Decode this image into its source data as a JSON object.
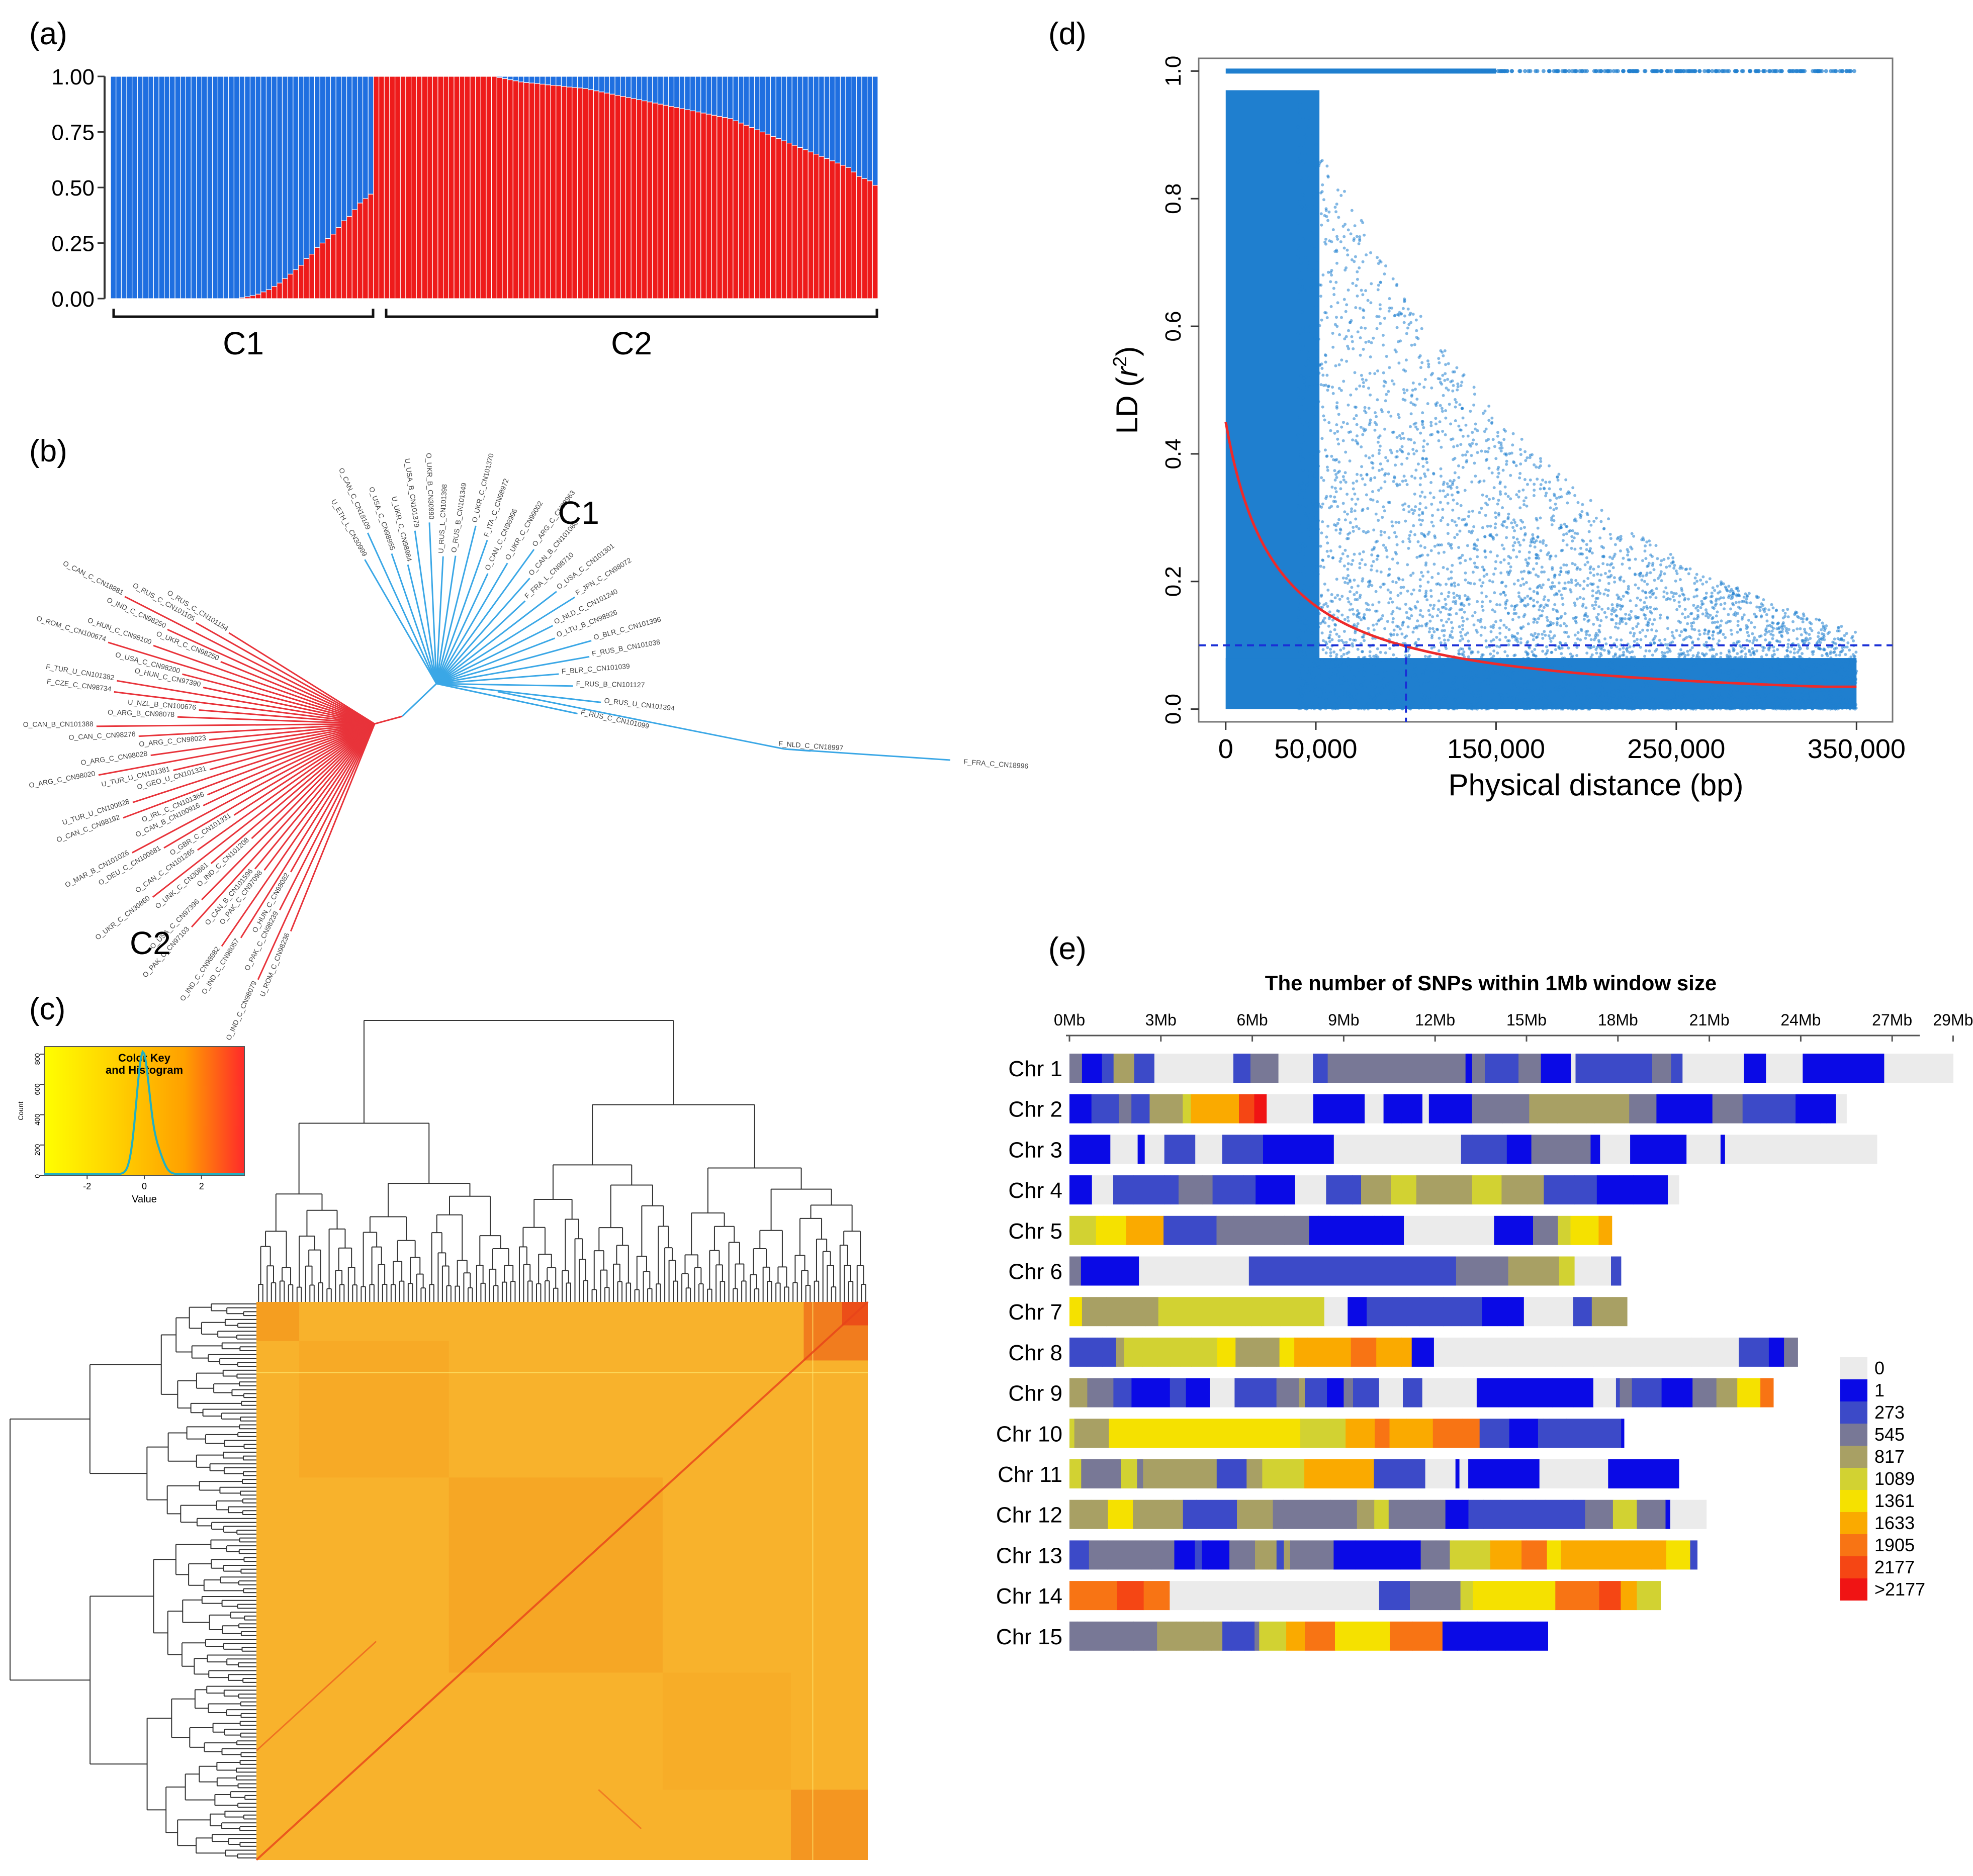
{
  "figure": {
    "panels": [
      "(a)",
      "(b)",
      "(c)",
      "(d)",
      "(e)"
    ],
    "colors": {
      "blue": "#1f6fe0",
      "red": "#ee1b1b",
      "ld_points": "#1f7fcf",
      "fit_curve": "#ee2a2a",
      "threshold": "#1a2fd6",
      "tree_blue": "#3aa7e6",
      "tree_red": "#e8333a"
    }
  },
  "chart_data": [
    {
      "id": "a",
      "type": "bar",
      "stacked": true,
      "title": "",
      "ylim": [
        0,
        1
      ],
      "y_ticks": [
        "0.00",
        "0.25",
        "0.50",
        "0.75",
        "1.00"
      ],
      "series": [
        {
          "name": "red",
          "color": "#ee1b1b",
          "description": "proportion of ancestry (red), sorted within groups"
        },
        {
          "name": "blue",
          "color": "#1f6fe0",
          "description": "1 - red"
        }
      ],
      "groups": [
        {
          "label": "C1",
          "n": 49,
          "values": [
            0,
            0,
            0,
            0,
            0,
            0,
            0,
            0,
            0,
            0,
            0,
            0,
            0,
            0,
            0,
            0,
            0,
            0,
            0,
            0,
            0,
            0,
            0,
            0,
            0.004,
            0.008,
            0.013,
            0.02,
            0.03,
            0.04,
            0.055,
            0.07,
            0.09,
            0.11,
            0.13,
            0.15,
            0.18,
            0.2,
            0.23,
            0.25,
            0.27,
            0.29,
            0.32,
            0.35,
            0.37,
            0.4,
            0.43,
            0.45,
            0.47
          ]
        },
        {
          "label": "C2",
          "n": 94,
          "values": [
            1,
            1,
            1,
            1,
            1,
            1,
            1,
            1,
            1,
            1,
            1,
            1,
            1,
            1,
            1,
            1,
            1,
            1,
            1,
            1,
            1,
            1,
            1,
            0.995,
            0.99,
            0.985,
            0.98,
            0.975,
            0.972,
            0.97,
            0.968,
            0.965,
            0.962,
            0.96,
            0.958,
            0.955,
            0.952,
            0.95,
            0.948,
            0.945,
            0.94,
            0.935,
            0.93,
            0.925,
            0.92,
            0.915,
            0.91,
            0.905,
            0.9,
            0.895,
            0.89,
            0.885,
            0.88,
            0.875,
            0.87,
            0.865,
            0.86,
            0.855,
            0.85,
            0.845,
            0.84,
            0.835,
            0.83,
            0.825,
            0.82,
            0.815,
            0.81,
            0.8,
            0.79,
            0.78,
            0.77,
            0.76,
            0.75,
            0.74,
            0.73,
            0.72,
            0.71,
            0.7,
            0.69,
            0.68,
            0.67,
            0.66,
            0.65,
            0.64,
            0.63,
            0.62,
            0.61,
            0.6,
            0.59,
            0.57,
            0.55,
            0.54,
            0.53,
            0.51
          ]
        }
      ]
    },
    {
      "id": "b",
      "type": "tree",
      "title": "",
      "clusters": [
        {
          "label": "C1",
          "color": "#3aa7e6"
        },
        {
          "label": "C2",
          "color": "#e8333a"
        }
      ],
      "leaf_labels_blue": [
        "U_ETH_L_CN30999",
        "O_CAN_C_CN18109",
        "O_USA_C_CN98955",
        "U_UKR_C_CN98984",
        "U_USA_B_CN101379",
        "O_UKR_B_CN30990",
        "U_RUS_L_CN101398",
        "O_RUS_B_CN101349",
        "O_UKR_C_CN101370",
        "F_ITA_C_CN98972",
        "O_CAN_C_CN98996",
        "O_UKR_C_CN99002",
        "O_ARG_C_CN98963",
        "O_CAN_B_CN101080",
        "F_FRA_L_CN98710",
        "O_USA_C_CN101301",
        "F_JPN_C_CN98072",
        "O_NLD_C_CN101240",
        "O_LTU_B_CN98926",
        "O_BLR_C_CN101396",
        "F_RUS_B_CN101038",
        "F_BLR_C_CN101039",
        "F_RUS_B_CN101127",
        "O_RUS_U_CN101394",
        "F_RUS_C_CN101099"
      ],
      "leaf_labels_blue_far": [
        "F_NLD_C_CN18997",
        "F_FRA_C_CN18996"
      ],
      "leaf_labels_red": [
        "U_ROM_C_CN98236",
        "O_IND_C_CN98079",
        "O_PAK_C_CN98239",
        "O_HUN_C_CN98082",
        "O_IND_C_CN98057",
        "O_IND_C_CN98982",
        "O_PAK_C_CN97098",
        "O_CAN_B_CN101596",
        "O_PAK_C_CN97103",
        "O_USA_C_CN97396",
        "O_IND_C_CN101208",
        "O_UNK_C_CN30861",
        "O_UKR_C_CN30860",
        "O_CAN_C_CN101265",
        "O_GBR_C_CN101331",
        "O_DEU_C_CN100681",
        "O_MAR_B_CN101026",
        "O_CAN_B_CN100916",
        "O_IRL_C_CN101366",
        "O_CAN_C_CN98192",
        "U_TUR_U_CN100828",
        "O_GEO_U_CN101331",
        "U_TUR_U_CN101381",
        "O_ARG_C_CN98020",
        "O_ARG_C_CN98028",
        "O_ARG_C_CN98023",
        "O_CAN_C_CN98276",
        "O_CAN_B_CN101388",
        "O_ARG_B_CN98078",
        "U_NZL_B_CN100676",
        "F_CZE_C_CN98734",
        "F_TUR_U_CN101382",
        "O_HUN_C_CN97390",
        "O_USA_C_CN98200",
        "O_ROM_C_CN100674",
        "O_HUN_C_CN98100",
        "O_UKR_C_CN98250",
        "O_IND_C_CN98250",
        "O_CAN_C_CN18881",
        "O_RUS_C_CN101105",
        "O_RUS_C_CN101154"
      ]
    },
    {
      "id": "c",
      "type": "heatmap",
      "title": "",
      "description": "clustered kinship heatmap with dendrograms",
      "color_key": {
        "title_line1": "Color Key",
        "title_line2": "and Histogram",
        "x_label": "Value",
        "y_label": "Count",
        "x_ticks": [
          "-2",
          "0",
          "2"
        ],
        "y_ticks": [
          "0",
          "200",
          "400",
          "600",
          "800"
        ],
        "xlim": [
          -3.5,
          3.5
        ],
        "ylim": [
          0,
          850
        ],
        "colors": [
          "#ffff00",
          "#ffd200",
          "#ffa000",
          "#ff2a2a"
        ]
      }
    },
    {
      "id": "d",
      "type": "scatter",
      "title": "",
      "xlabel": "Physical distance (bp)",
      "ylabel_prefix": "LD (",
      "ylabel_var": "r",
      "ylabel_sup": "2",
      "ylabel_suffix": ")",
      "xlim": [
        -15000,
        370000
      ],
      "ylim": [
        -0.02,
        1.02
      ],
      "x_ticks": [
        {
          "value": 0,
          "label": "0"
        },
        {
          "value": 50000,
          "label": "50,000"
        },
        {
          "value": 150000,
          "label": "150,000"
        },
        {
          "value": 250000,
          "label": "250,000"
        },
        {
          "value": 350000,
          "label": "350,000"
        }
      ],
      "y_ticks": [
        "0.0",
        "0.2",
        "0.4",
        "0.6",
        "0.8",
        "1.0"
      ],
      "decay_curve": {
        "x_start": 0,
        "x_end": 350000,
        "r2_start": 0.45,
        "r2_end": 0.035
      },
      "threshold": {
        "r2": 0.1,
        "distance_bp": 100000
      }
    },
    {
      "id": "e",
      "type": "heatmap",
      "title": "The number of SNPs within 1Mb window size",
      "x_ticks": [
        "0Mb",
        "3Mb",
        "6Mb",
        "9Mb",
        "12Mb",
        "15Mb",
        "18Mb",
        "21Mb",
        "24Mb",
        "27Mb",
        "29Mb"
      ],
      "chromosomes": [
        {
          "label": "Chr 1",
          "length_mb": 29.0
        },
        {
          "label": "Chr 2",
          "length_mb": 25.5
        },
        {
          "label": "Chr 3",
          "length_mb": 26.5
        },
        {
          "label": "Chr 4",
          "length_mb": 20.0
        },
        {
          "label": "Chr 5",
          "length_mb": 17.8
        },
        {
          "label": "Chr 6",
          "length_mb": 18.1
        },
        {
          "label": "Chr 7",
          "length_mb": 18.3
        },
        {
          "label": "Chr 8",
          "length_mb": 23.9
        },
        {
          "label": "Chr 9",
          "length_mb": 23.1
        },
        {
          "label": "Chr 10",
          "length_mb": 18.2
        },
        {
          "label": "Chr 11",
          "length_mb": 20.0
        },
        {
          "label": "Chr 12",
          "length_mb": 20.9
        },
        {
          "label": "Chr 13",
          "length_mb": 20.6
        },
        {
          "label": "Chr 14",
          "length_mb": 19.4
        },
        {
          "label": "Chr 15",
          "length_mb": 15.7
        }
      ],
      "legend": [
        {
          "label": "0",
          "color": "#ebebeb"
        },
        {
          "label": "1",
          "color": "#0a0ae6"
        },
        {
          "label": "273",
          "color": "#3c4ac8"
        },
        {
          "label": "545",
          "color": "#787896"
        },
        {
          "label": "817",
          "color": "#a8a064"
        },
        {
          "label": "1089",
          "color": "#d2d232"
        },
        {
          "label": "1361",
          "color": "#f5e100"
        },
        {
          "label": "1633",
          "color": "#faaa00"
        },
        {
          "label": "1905",
          "color": "#f87414"
        },
        {
          "label": "2177",
          "color": "#f54614"
        },
        {
          "label": ">2177",
          "color": "#f01414"
        }
      ]
    }
  ]
}
